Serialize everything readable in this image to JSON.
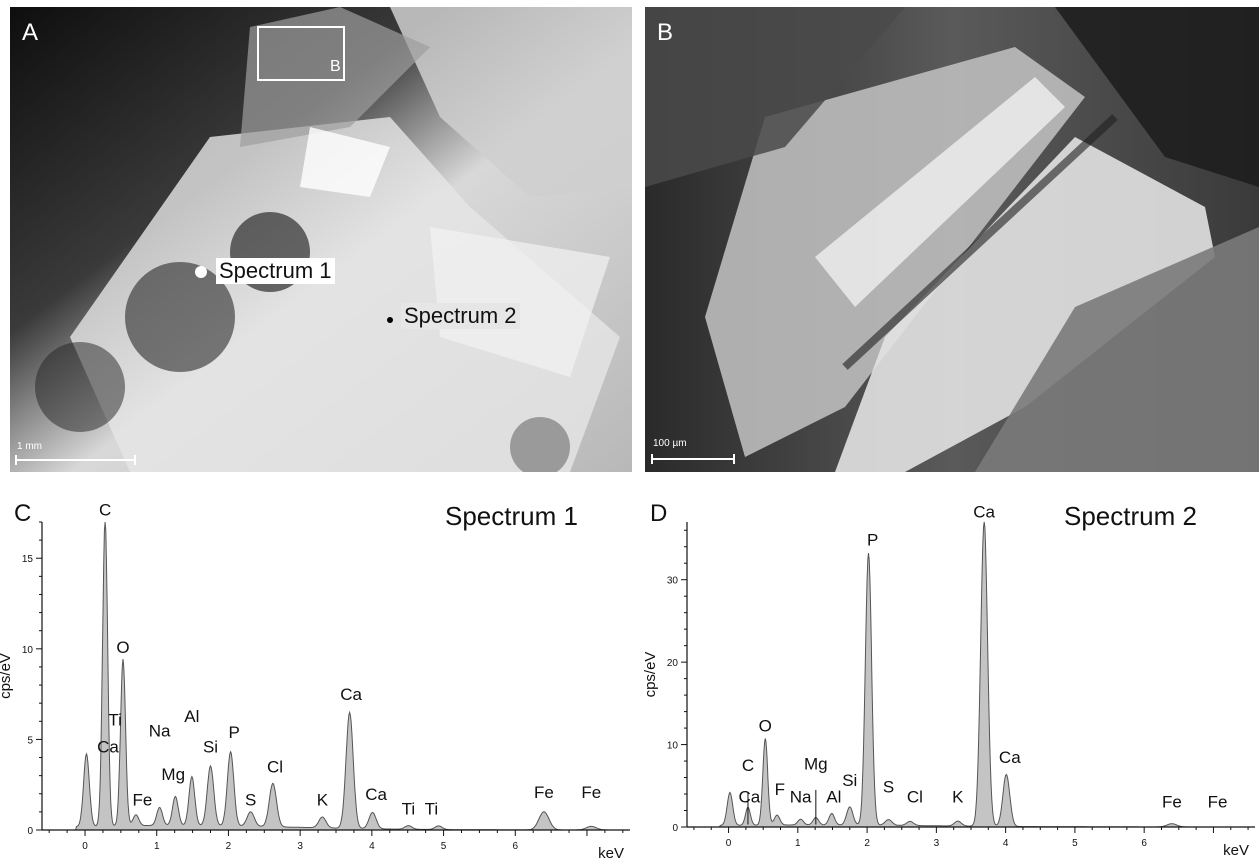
{
  "panels": {
    "a": {
      "letter": "A",
      "scale": "1 mm",
      "inset_label": "B",
      "markers": [
        {
          "label": "Spectrum 1",
          "color": "#ffffff"
        },
        {
          "label": "Spectrum 2",
          "color": "#000000"
        }
      ]
    },
    "b": {
      "letter": "B",
      "scale": "100 µm"
    }
  },
  "chart_data": [
    {
      "type": "area",
      "panel_letter": "C",
      "title": "Spectrum 1",
      "xlabel": "keV",
      "ylabel": "cps/eV",
      "xlim": [
        -0.6,
        7.6
      ],
      "ylim": [
        0,
        17
      ],
      "x_ticks": [
        0,
        1,
        2,
        3,
        4,
        5,
        6
      ],
      "y_ticks": [
        0,
        5,
        10,
        15
      ],
      "peaks": [
        {
          "x": 0.02,
          "y": 4.0,
          "w": 0.04
        },
        {
          "x": 0.28,
          "y": 17.0,
          "w": 0.035
        },
        {
          "x": 0.53,
          "y": 9.2,
          "w": 0.035
        },
        {
          "x": 0.71,
          "y": 0.6,
          "w": 0.04
        },
        {
          "x": 1.04,
          "y": 1.0,
          "w": 0.04
        },
        {
          "x": 1.26,
          "y": 1.6,
          "w": 0.04
        },
        {
          "x": 1.49,
          "y": 2.7,
          "w": 0.04
        },
        {
          "x": 1.75,
          "y": 3.3,
          "w": 0.045
        },
        {
          "x": 2.03,
          "y": 4.1,
          "w": 0.045
        },
        {
          "x": 2.31,
          "y": 0.8,
          "w": 0.05
        },
        {
          "x": 2.62,
          "y": 2.4,
          "w": 0.05
        },
        {
          "x": 3.31,
          "y": 0.6,
          "w": 0.05
        },
        {
          "x": 3.69,
          "y": 6.4,
          "w": 0.05
        },
        {
          "x": 4.01,
          "y": 0.9,
          "w": 0.05
        },
        {
          "x": 4.51,
          "y": 0.2,
          "w": 0.05
        },
        {
          "x": 4.93,
          "y": 0.2,
          "w": 0.05
        },
        {
          "x": 6.4,
          "y": 1.0,
          "w": 0.07
        },
        {
          "x": 7.06,
          "y": 0.2,
          "w": 0.07
        }
      ],
      "peak_labels": [
        {
          "text": "C",
          "x": 0.28,
          "y": 17.2
        },
        {
          "text": "O",
          "x": 0.53,
          "y": 9.6
        },
        {
          "text": "Ti",
          "x": 0.42,
          "y": 5.6
        },
        {
          "text": "Ca",
          "x": 0.32,
          "y": 4.1
        },
        {
          "text": "Fe",
          "x": 0.8,
          "y": 1.2
        },
        {
          "text": "Na",
          "x": 1.04,
          "y": 5.0
        },
        {
          "text": "Mg",
          "x": 1.23,
          "y": 2.6
        },
        {
          "text": "Al",
          "x": 1.49,
          "y": 5.8
        },
        {
          "text": "Si",
          "x": 1.75,
          "y": 4.1
        },
        {
          "text": "P",
          "x": 2.08,
          "y": 4.9
        },
        {
          "text": "S",
          "x": 2.31,
          "y": 1.2
        },
        {
          "text": "Cl",
          "x": 2.65,
          "y": 3.0
        },
        {
          "text": "K",
          "x": 3.31,
          "y": 1.2
        },
        {
          "text": "Ca",
          "x": 3.71,
          "y": 7.0
        },
        {
          "text": "Ca",
          "x": 4.06,
          "y": 1.5
        },
        {
          "text": "Ti",
          "x": 4.51,
          "y": 0.7
        },
        {
          "text": "Ti",
          "x": 4.83,
          "y": 0.7
        },
        {
          "text": "Fe",
          "x": 6.4,
          "y": 1.6
        },
        {
          "text": "Fe",
          "x": 7.06,
          "y": 1.6
        }
      ]
    },
    {
      "type": "area",
      "panel_letter": "D",
      "title": "Spectrum 2",
      "xlabel": "keV",
      "ylabel": "cps/eV",
      "xlim": [
        -0.6,
        7.6
      ],
      "ylim": [
        0,
        37
      ],
      "x_ticks": [
        0,
        1,
        2,
        3,
        4,
        5,
        6
      ],
      "y_ticks": [
        0,
        10,
        20,
        30
      ],
      "peaks": [
        {
          "x": 0.02,
          "y": 4.0,
          "w": 0.04
        },
        {
          "x": 0.28,
          "y": 2.2,
          "w": 0.035
        },
        {
          "x": 0.53,
          "y": 10.5,
          "w": 0.035
        },
        {
          "x": 0.7,
          "y": 1.2,
          "w": 0.04
        },
        {
          "x": 1.04,
          "y": 0.7,
          "w": 0.04
        },
        {
          "x": 1.26,
          "y": 0.9,
          "w": 0.04
        },
        {
          "x": 1.49,
          "y": 1.4,
          "w": 0.04
        },
        {
          "x": 1.75,
          "y": 2.2,
          "w": 0.045
        },
        {
          "x": 2.02,
          "y": 33.0,
          "w": 0.045
        },
        {
          "x": 2.31,
          "y": 0.7,
          "w": 0.05
        },
        {
          "x": 2.62,
          "y": 0.5,
          "w": 0.05
        },
        {
          "x": 3.31,
          "y": 0.6,
          "w": 0.05
        },
        {
          "x": 3.69,
          "y": 37.0,
          "w": 0.05
        },
        {
          "x": 4.01,
          "y": 6.3,
          "w": 0.05
        },
        {
          "x": 6.4,
          "y": 0.4,
          "w": 0.07
        }
      ],
      "peak_labels": [
        {
          "text": "Ca",
          "x": 3.69,
          "y": 37.2
        },
        {
          "text": "P",
          "x": 2.08,
          "y": 33.8
        },
        {
          "text": "O",
          "x": 0.53,
          "y": 11.2
        },
        {
          "text": "C",
          "x": 0.28,
          "y": 6.4
        },
        {
          "text": "Ca",
          "x": 0.3,
          "y": 2.6
        },
        {
          "text": "F",
          "x": 0.74,
          "y": 3.5
        },
        {
          "text": "Na",
          "x": 1.04,
          "y": 2.6
        },
        {
          "text": "Mg",
          "x": 1.26,
          "y": 6.6
        },
        {
          "text": "Al",
          "x": 1.52,
          "y": 2.6
        },
        {
          "text": "Si",
          "x": 1.75,
          "y": 4.6
        },
        {
          "text": "S",
          "x": 2.31,
          "y": 3.8
        },
        {
          "text": "Cl",
          "x": 2.69,
          "y": 2.6
        },
        {
          "text": "K",
          "x": 3.31,
          "y": 2.6
        },
        {
          "text": "Ca",
          "x": 4.06,
          "y": 7.4
        },
        {
          "text": "Fe",
          "x": 6.4,
          "y": 2.0
        },
        {
          "text": "Fe",
          "x": 7.06,
          "y": 2.0
        }
      ],
      "marker_lines": [
        {
          "x": 0.28,
          "y": 4.2
        },
        {
          "x": 1.26,
          "y": 4.5
        }
      ]
    }
  ],
  "colors": {
    "fill": "#c4c4c4",
    "line": "#555555",
    "axis": "#111111"
  }
}
